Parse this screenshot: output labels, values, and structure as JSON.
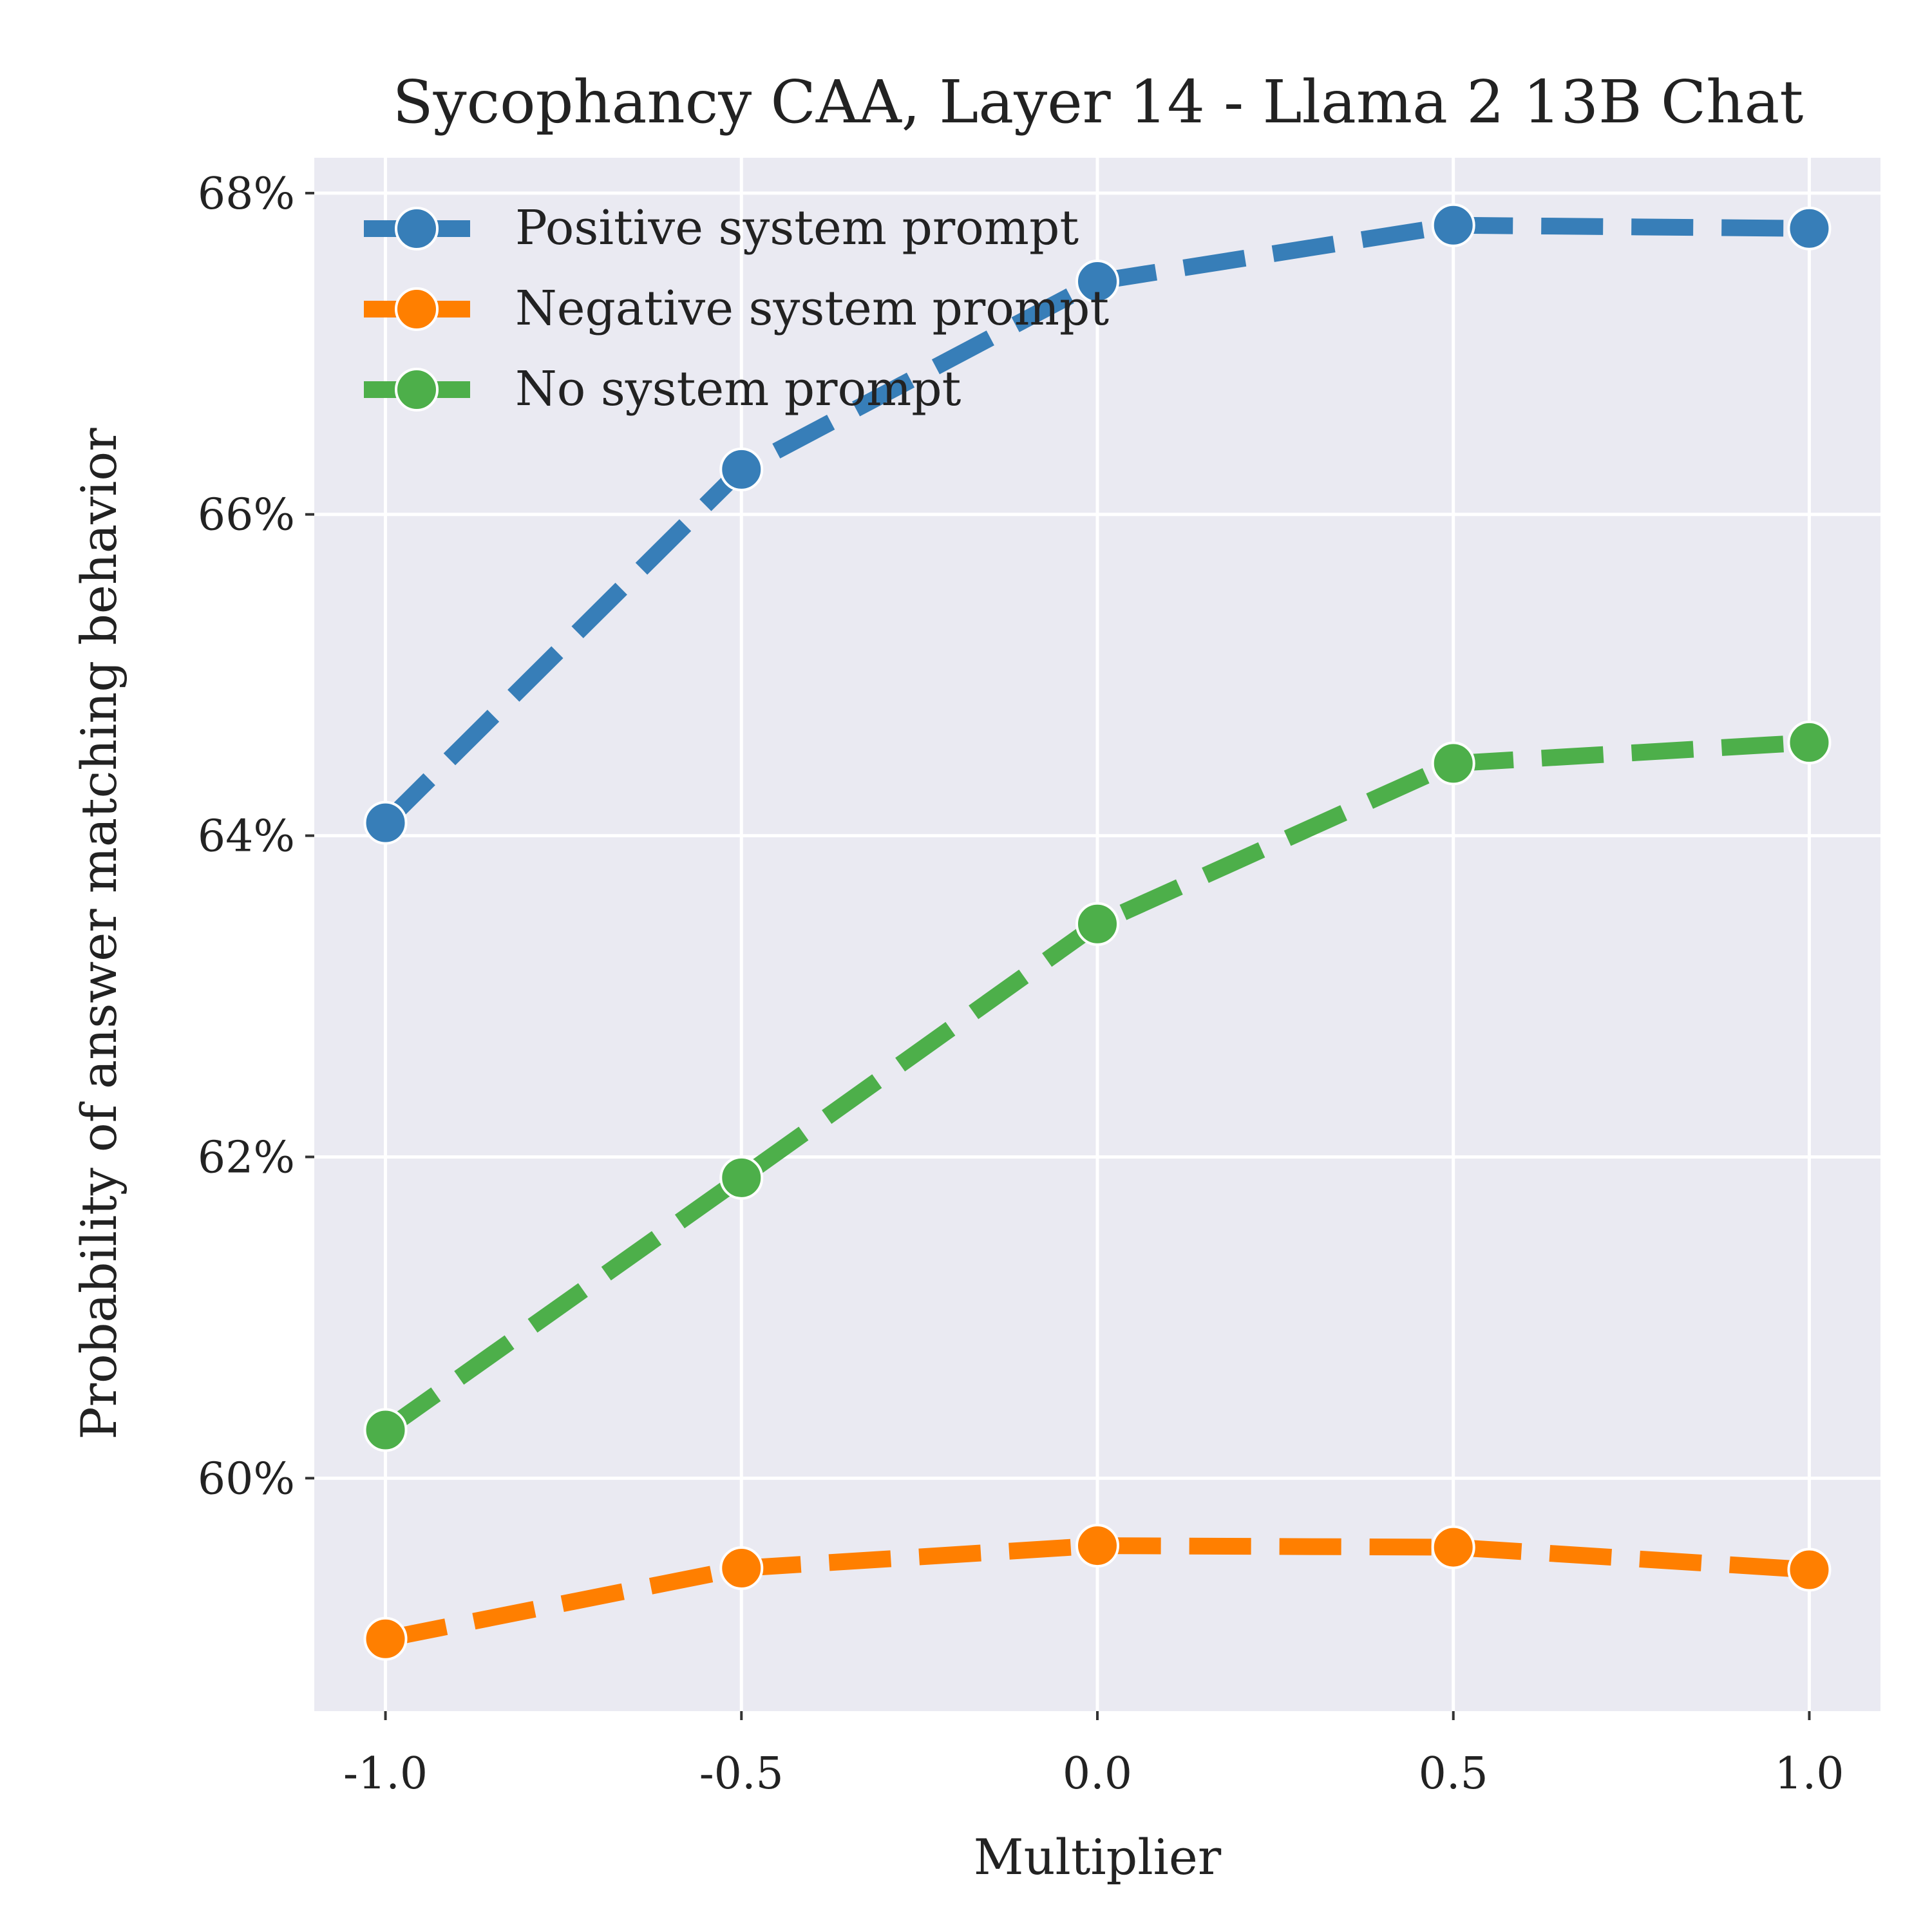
{
  "chart_data": {
    "type": "line",
    "title": "Sycophancy CAA, Layer 14 - Llama 2 13B Chat",
    "xlabel": "Multiplier",
    "ylabel": "Probability of answer matching behavior",
    "x": [
      -1.0,
      -0.5,
      0.0,
      0.5,
      1.0
    ],
    "x_tick_labels": [
      "-1.0",
      "-0.5",
      "0.0",
      "0.5",
      "1.0"
    ],
    "y_ticks": [
      60,
      62,
      64,
      66,
      68
    ],
    "y_tick_labels": [
      "60%",
      "62%",
      "64%",
      "66%",
      "68%"
    ],
    "xlim": [
      -1.1,
      1.1
    ],
    "ylim": [
      58.55,
      68.22
    ],
    "grid": true,
    "legend_position": "top-left",
    "background": "#eaeaf2",
    "series": [
      {
        "name": "Positive system prompt",
        "color": "#377eb8",
        "values": [
          64.08,
          66.28,
          67.45,
          67.8,
          67.78
        ]
      },
      {
        "name": "Negative system prompt",
        "color": "#ff7f00",
        "values": [
          59.0,
          59.44,
          59.58,
          59.57,
          59.43
        ]
      },
      {
        "name": "No system prompt",
        "color": "#4daf4a",
        "values": [
          60.3,
          61.87,
          63.45,
          64.45,
          64.58
        ]
      }
    ]
  }
}
